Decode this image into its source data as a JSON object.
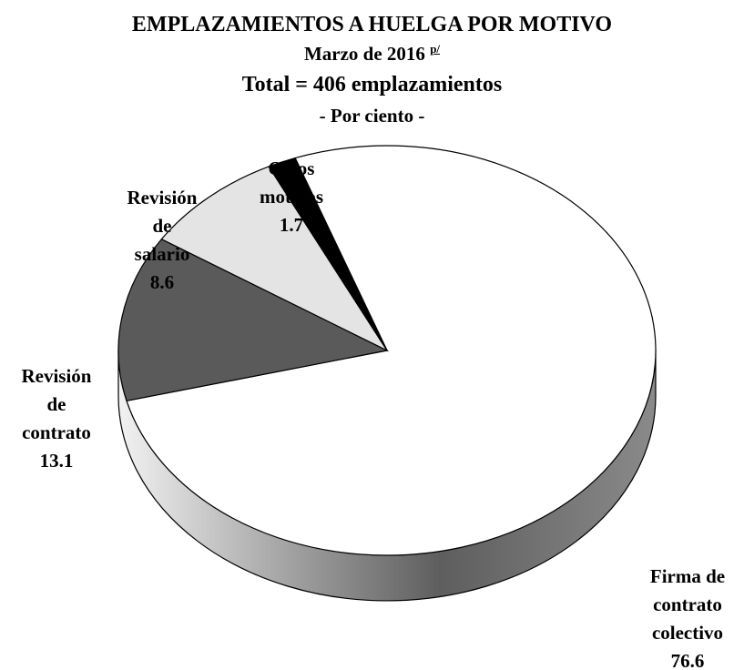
{
  "chart_data": {
    "type": "pie",
    "title": "EMPLAZAMIENTOS A HUELGA POR MOTIVO",
    "subtitle": "Marzo de 2016",
    "subtitle_note": "p/",
    "total_label": "Total = 406 emplazamientos",
    "unit_label": "- Por ciento -",
    "categories": [
      "Firma de contrato colectivo",
      "Revisión de contrato",
      "Revisión de salario",
      "Otros motivos"
    ],
    "values": [
      76.6,
      13.1,
      8.6,
      1.7
    ],
    "colors": [
      "#ffffff",
      "#5a5a5a",
      "#e4e4e4",
      "#000000"
    ]
  }
}
